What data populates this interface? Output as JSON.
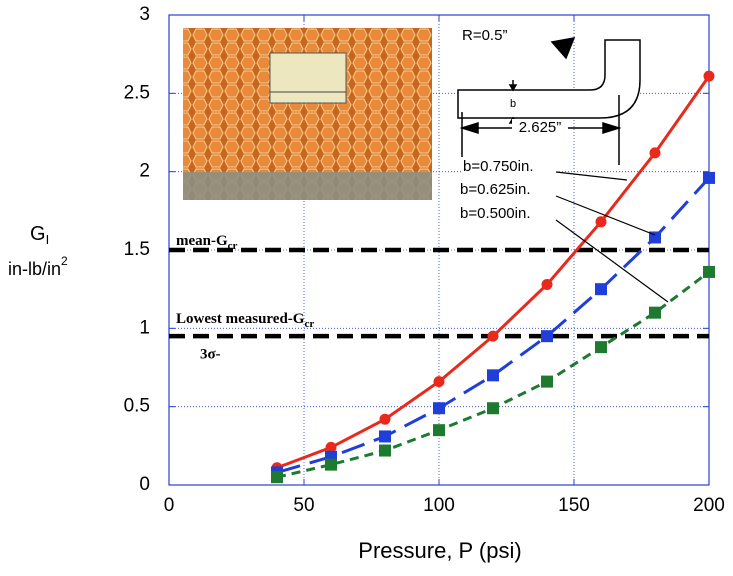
{
  "chart_data": {
    "type": "line",
    "x_label": "Pressure, P (psi)",
    "y_label": {
      "main": "G",
      "sub": "I",
      "unit": "in-lb/in",
      "unit_sup": "2"
    },
    "x": [
      40,
      60,
      80,
      100,
      120,
      140,
      160,
      180,
      200
    ],
    "series": [
      {
        "name": "b=0.750in.",
        "color": "#e8291c",
        "marker": "circle",
        "line_style": "solid",
        "values": [
          0.11,
          0.24,
          0.42,
          0.66,
          0.95,
          1.28,
          1.68,
          2.12,
          2.61
        ]
      },
      {
        "name": "b=0.625in.",
        "color": "#1f3fd8",
        "marker": "square",
        "line_style": "long-dash",
        "values": [
          0.08,
          0.18,
          0.31,
          0.49,
          0.7,
          0.95,
          1.25,
          1.58,
          1.96
        ]
      },
      {
        "name": "b=0.500in.",
        "color": "#1e7a2e",
        "marker": "square",
        "line_style": "short-dash",
        "values": [
          0.05,
          0.13,
          0.22,
          0.35,
          0.49,
          0.66,
          0.88,
          1.1,
          1.36
        ]
      }
    ],
    "reference_lines": [
      {
        "value": 1.5,
        "label": "mean-G",
        "sub": "cr"
      },
      {
        "value": 0.95,
        "label": "Lowest measured-G",
        "sub": "cr",
        "note": "3σ-"
      }
    ],
    "inset_diagram": {
      "radius_label": "R=0.5”",
      "width_label": "b",
      "length_label": "2.625”"
    },
    "xlim": [
      0,
      200
    ],
    "xticks": [
      0,
      50,
      100,
      150,
      200
    ],
    "ylim": [
      0,
      3
    ],
    "yticks": [
      0,
      0.5,
      1,
      1.5,
      2,
      2.5,
      3
    ],
    "grid": true
  }
}
